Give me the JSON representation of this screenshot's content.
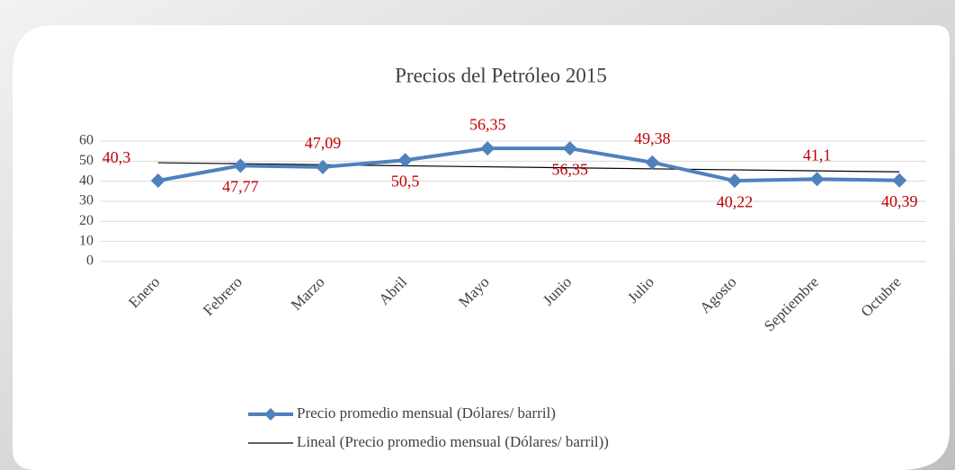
{
  "chart_data": {
    "type": "line",
    "title": "Precios del Petróleo 2015",
    "categories": [
      "Enero",
      "Febrero",
      "Marzo",
      "Abril",
      "Mayo",
      "Junio",
      "Julio",
      "Agosto",
      "Septiembre",
      "Octubre"
    ],
    "series": [
      {
        "name": "Precio promedio mensual (Dólares/ barril)",
        "color": "#4f81bd",
        "values": [
          40.3,
          47.77,
          47.09,
          50.5,
          56.35,
          56.35,
          49.38,
          40.22,
          41.1,
          40.39
        ],
        "value_labels": [
          "40,3",
          "47,77",
          "47,09",
          "50,5",
          "56,35",
          "56,35",
          "49,38",
          "40,22",
          "41,1",
          "40,39"
        ]
      }
    ],
    "trendline": {
      "name": "Lineal (Precio promedio mensual (Dólares/ barril))",
      "color": "#000000",
      "kind": "linear"
    },
    "value_label_color": "#c00000",
    "ylim": [
      0,
      60
    ],
    "yticks": [
      0,
      10,
      20,
      30,
      40,
      50,
      60
    ],
    "grid": true
  }
}
